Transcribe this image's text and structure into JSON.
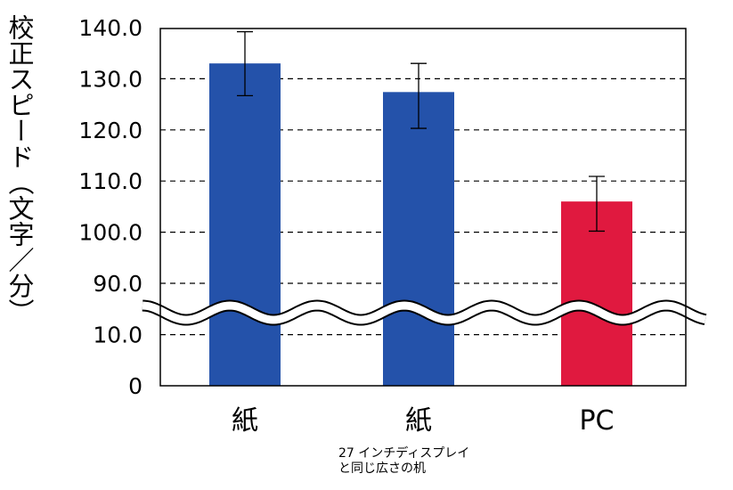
{
  "chart_data": {
    "type": "bar",
    "ylabel": "校正スピード（文字／分）",
    "categories": [
      "紙",
      "紙",
      "PC"
    ],
    "category_sublabels": [
      "",
      "27 インチディスプレイと同じ広さの机",
      ""
    ],
    "values": [
      133.0,
      127.4,
      106.0
    ],
    "error_low": [
      126.7,
      120.3,
      100.2
    ],
    "error_high": [
      139.2,
      133.0,
      110.9
    ],
    "colors": [
      "#2452AA",
      "#2452AA",
      "#E0193F"
    ],
    "yticks": [
      "0",
      "10.0",
      "90.0",
      "100.0",
      "110.0",
      "120.0",
      "130.0",
      "140.0"
    ],
    "ytick_values": [
      0,
      10,
      90,
      100,
      110,
      120,
      130,
      140
    ],
    "ylim": [
      0,
      140
    ],
    "axis_break": [
      10,
      90
    ],
    "grid": true
  }
}
